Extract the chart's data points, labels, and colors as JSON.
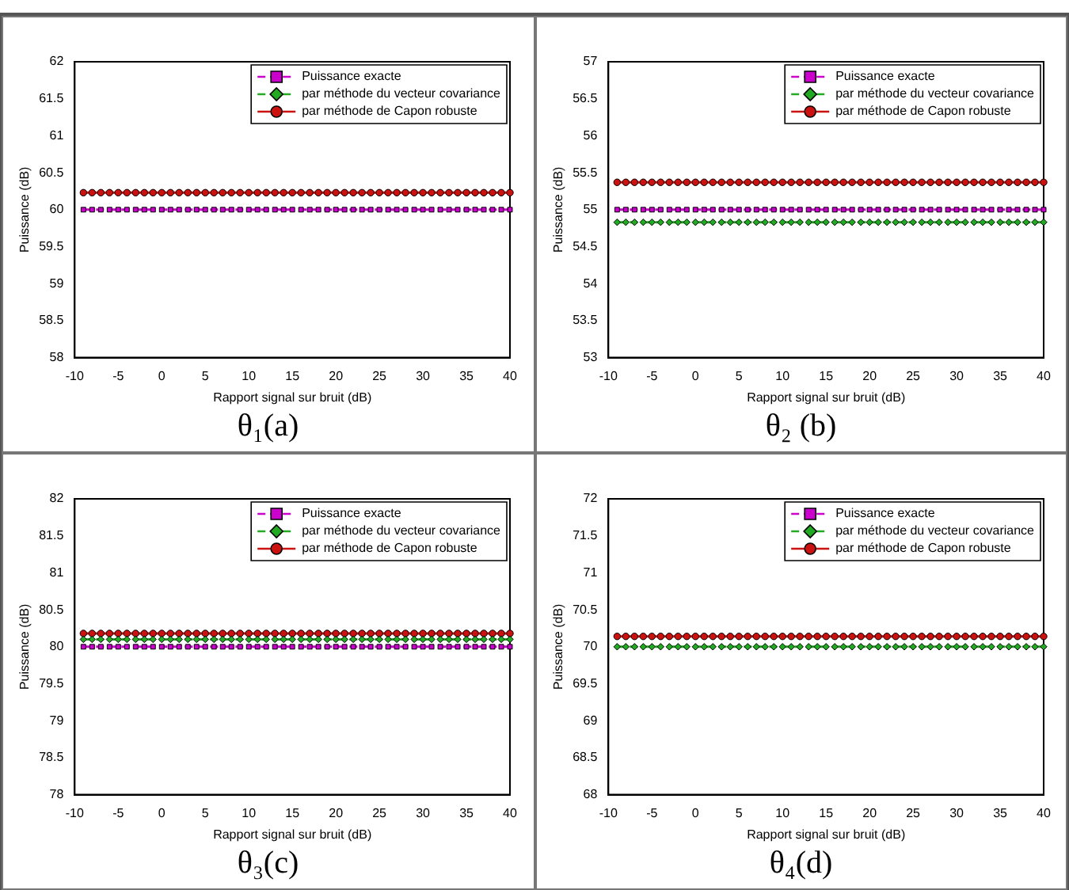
{
  "chart_data": [
    {
      "type": "line",
      "title": "θ₁(a)",
      "xlabel": "Rapport signal sur bruit (dB)",
      "ylabel": "Puissance (dB)",
      "x": [
        -9,
        -8,
        -7,
        -6,
        -5,
        -4,
        -3,
        -2,
        -1,
        0,
        1,
        2,
        3,
        4,
        5,
        6,
        7,
        8,
        9,
        10,
        11,
        12,
        13,
        14,
        15,
        16,
        17,
        18,
        19,
        20,
        21,
        22,
        23,
        24,
        25,
        26,
        27,
        28,
        29,
        30,
        31,
        32,
        33,
        34,
        35,
        36,
        37,
        38,
        39,
        40
      ],
      "xlim": [
        -10,
        40
      ],
      "xticks": [
        -10,
        -5,
        0,
        5,
        10,
        15,
        20,
        25,
        30,
        35,
        40
      ],
      "ylim": [
        58,
        62
      ],
      "yticks": [
        58,
        58.5,
        59,
        59.5,
        60,
        60.5,
        61,
        61.5,
        62
      ],
      "legend": "top right",
      "series": [
        {
          "name": "Puissance exacte",
          "color": "#cc00cc",
          "marker": "square",
          "line_style": "dashed",
          "values": [
            60,
            60,
            60,
            60,
            60,
            60,
            60,
            60,
            60,
            60,
            60,
            60,
            60,
            60,
            60,
            60,
            60,
            60,
            60,
            60,
            60,
            60,
            60,
            60,
            60,
            60,
            60,
            60,
            60,
            60,
            60,
            60,
            60,
            60,
            60,
            60,
            60,
            60,
            60,
            60,
            60,
            60,
            60,
            60,
            60,
            60,
            60,
            60,
            60,
            60
          ]
        },
        {
          "name": "par méthode du vecteur covariance",
          "color": "#22aa22",
          "marker": "diamond",
          "line_style": "dashed",
          "values": [
            null,
            null,
            null,
            null,
            null,
            null,
            null,
            null,
            null,
            null,
            null,
            null,
            null,
            null,
            null,
            null,
            null,
            null,
            null,
            null,
            null,
            null,
            null,
            null,
            null,
            null,
            null,
            null,
            null,
            null,
            null,
            null,
            null,
            null,
            null,
            null,
            null,
            null,
            null,
            null,
            null,
            null,
            null,
            null,
            null,
            null,
            null,
            null,
            null,
            null
          ]
        },
        {
          "name": "par méthode de Capon robuste",
          "color": "#cc1111",
          "marker": "circle",
          "line_style": "solid",
          "values": [
            60.23,
            60.23,
            60.23,
            60.23,
            60.23,
            60.23,
            60.23,
            60.23,
            60.23,
            60.23,
            60.23,
            60.23,
            60.23,
            60.23,
            60.23,
            60.23,
            60.23,
            60.23,
            60.23,
            60.23,
            60.23,
            60.23,
            60.23,
            60.23,
            60.23,
            60.23,
            60.23,
            60.23,
            60.23,
            60.23,
            60.23,
            60.23,
            60.23,
            60.23,
            60.23,
            60.23,
            60.23,
            60.23,
            60.23,
            60.23,
            60.23,
            60.23,
            60.23,
            60.23,
            60.23,
            60.23,
            60.23,
            60.23,
            60.23,
            60.23
          ]
        }
      ]
    },
    {
      "type": "line",
      "title": "θ₂ (b)",
      "xlabel": "Rapport signal sur bruit (dB)",
      "ylabel": "Puissance (dB)",
      "x": [
        -9,
        -8,
        -7,
        -6,
        -5,
        -4,
        -3,
        -2,
        -1,
        0,
        1,
        2,
        3,
        4,
        5,
        6,
        7,
        8,
        9,
        10,
        11,
        12,
        13,
        14,
        15,
        16,
        17,
        18,
        19,
        20,
        21,
        22,
        23,
        24,
        25,
        26,
        27,
        28,
        29,
        30,
        31,
        32,
        33,
        34,
        35,
        36,
        37,
        38,
        39,
        40
      ],
      "xlim": [
        -10,
        40
      ],
      "xticks": [
        -10,
        -5,
        0,
        5,
        10,
        15,
        20,
        25,
        30,
        35,
        40
      ],
      "ylim": [
        53,
        57
      ],
      "yticks": [
        53,
        53.5,
        54,
        54.5,
        55,
        55.5,
        56,
        56.5,
        57
      ],
      "legend": "top right",
      "series": [
        {
          "name": "Puissance exacte",
          "color": "#cc00cc",
          "marker": "square",
          "line_style": "dashed",
          "values": [
            55,
            55,
            55,
            55,
            55,
            55,
            55,
            55,
            55,
            55,
            55,
            55,
            55,
            55,
            55,
            55,
            55,
            55,
            55,
            55,
            55,
            55,
            55,
            55,
            55,
            55,
            55,
            55,
            55,
            55,
            55,
            55,
            55,
            55,
            55,
            55,
            55,
            55,
            55,
            55,
            55,
            55,
            55,
            55,
            55,
            55,
            55,
            55,
            55,
            55
          ]
        },
        {
          "name": "par méthode du vecteur covariance",
          "color": "#22aa22",
          "marker": "diamond",
          "line_style": "dashed",
          "values": [
            54.83,
            54.83,
            54.83,
            54.83,
            54.83,
            54.83,
            54.83,
            54.83,
            54.83,
            54.83,
            54.83,
            54.83,
            54.83,
            54.83,
            54.83,
            54.83,
            54.83,
            54.83,
            54.83,
            54.83,
            54.83,
            54.83,
            54.83,
            54.83,
            54.83,
            54.83,
            54.83,
            54.83,
            54.83,
            54.83,
            54.83,
            54.83,
            54.83,
            54.83,
            54.83,
            54.83,
            54.83,
            54.83,
            54.83,
            54.83,
            54.83,
            54.83,
            54.83,
            54.83,
            54.83,
            54.83,
            54.83,
            54.83,
            54.83,
            54.83
          ]
        },
        {
          "name": "par méthode de Capon robuste",
          "color": "#cc1111",
          "marker": "circle",
          "line_style": "solid",
          "values": [
            55.37,
            55.37,
            55.37,
            55.37,
            55.37,
            55.37,
            55.37,
            55.37,
            55.37,
            55.37,
            55.37,
            55.37,
            55.37,
            55.37,
            55.37,
            55.37,
            55.37,
            55.37,
            55.37,
            55.37,
            55.37,
            55.37,
            55.37,
            55.37,
            55.37,
            55.37,
            55.37,
            55.37,
            55.37,
            55.37,
            55.37,
            55.37,
            55.37,
            55.37,
            55.37,
            55.37,
            55.37,
            55.37,
            55.37,
            55.37,
            55.37,
            55.37,
            55.37,
            55.37,
            55.37,
            55.37,
            55.37,
            55.37,
            55.37,
            55.37
          ]
        }
      ]
    },
    {
      "type": "line",
      "title": "θ₃(c)",
      "xlabel": "Rapport signal sur bruit (dB)",
      "ylabel": "Puissance (dB)",
      "x": [
        -9,
        -8,
        -7,
        -6,
        -5,
        -4,
        -3,
        -2,
        -1,
        0,
        1,
        2,
        3,
        4,
        5,
        6,
        7,
        8,
        9,
        10,
        11,
        12,
        13,
        14,
        15,
        16,
        17,
        18,
        19,
        20,
        21,
        22,
        23,
        24,
        25,
        26,
        27,
        28,
        29,
        30,
        31,
        32,
        33,
        34,
        35,
        36,
        37,
        38,
        39,
        40
      ],
      "xlim": [
        -10,
        40
      ],
      "xticks": [
        -10,
        -5,
        0,
        5,
        10,
        15,
        20,
        25,
        30,
        35,
        40
      ],
      "ylim": [
        78,
        82
      ],
      "yticks": [
        78,
        78.5,
        79,
        79.5,
        80,
        80.5,
        81,
        81.5,
        82
      ],
      "legend": "top right",
      "series": [
        {
          "name": "Puissance exacte",
          "color": "#cc00cc",
          "marker": "square",
          "line_style": "dashed",
          "values": [
            80,
            80,
            80,
            80,
            80,
            80,
            80,
            80,
            80,
            80,
            80,
            80,
            80,
            80,
            80,
            80,
            80,
            80,
            80,
            80,
            80,
            80,
            80,
            80,
            80,
            80,
            80,
            80,
            80,
            80,
            80,
            80,
            80,
            80,
            80,
            80,
            80,
            80,
            80,
            80,
            80,
            80,
            80,
            80,
            80,
            80,
            80,
            80,
            80,
            80
          ]
        },
        {
          "name": "par méthode du vecteur covariance",
          "color": "#22aa22",
          "marker": "diamond",
          "line_style": "dashed",
          "values": [
            80.1,
            80.1,
            80.1,
            80.1,
            80.1,
            80.1,
            80.1,
            80.1,
            80.1,
            80.1,
            80.1,
            80.1,
            80.1,
            80.1,
            80.1,
            80.1,
            80.1,
            80.1,
            80.1,
            80.1,
            80.1,
            80.1,
            80.1,
            80.1,
            80.1,
            80.1,
            80.1,
            80.1,
            80.1,
            80.1,
            80.1,
            80.1,
            80.1,
            80.1,
            80.1,
            80.1,
            80.1,
            80.1,
            80.1,
            80.1,
            80.1,
            80.1,
            80.1,
            80.1,
            80.1,
            80.1,
            80.1,
            80.1,
            80.1,
            80.1
          ]
        },
        {
          "name": "par méthode de Capon robuste",
          "color": "#cc1111",
          "marker": "circle",
          "line_style": "solid",
          "values": [
            80.18,
            80.18,
            80.18,
            80.18,
            80.18,
            80.18,
            80.18,
            80.18,
            80.18,
            80.18,
            80.18,
            80.18,
            80.18,
            80.18,
            80.18,
            80.18,
            80.18,
            80.18,
            80.18,
            80.18,
            80.18,
            80.18,
            80.18,
            80.18,
            80.18,
            80.18,
            80.18,
            80.18,
            80.18,
            80.18,
            80.18,
            80.18,
            80.18,
            80.18,
            80.18,
            80.18,
            80.18,
            80.18,
            80.18,
            80.18,
            80.18,
            80.18,
            80.18,
            80.18,
            80.18,
            80.18,
            80.18,
            80.18,
            80.18,
            80.18
          ]
        }
      ]
    },
    {
      "type": "line",
      "title": "θ₄(d)",
      "xlabel": "Rapport signal sur bruit (dB)",
      "ylabel": "Puissance (dB)",
      "x": [
        -9,
        -8,
        -7,
        -6,
        -5,
        -4,
        -3,
        -2,
        -1,
        0,
        1,
        2,
        3,
        4,
        5,
        6,
        7,
        8,
        9,
        10,
        11,
        12,
        13,
        14,
        15,
        16,
        17,
        18,
        19,
        20,
        21,
        22,
        23,
        24,
        25,
        26,
        27,
        28,
        29,
        30,
        31,
        32,
        33,
        34,
        35,
        36,
        37,
        38,
        39,
        40
      ],
      "xlim": [
        -10,
        40
      ],
      "xticks": [
        -10,
        -5,
        0,
        5,
        10,
        15,
        20,
        25,
        30,
        35,
        40
      ],
      "ylim": [
        68,
        72
      ],
      "yticks": [
        68,
        68.5,
        69,
        69.5,
        70,
        70.5,
        71,
        71.5,
        72
      ],
      "legend": "top right",
      "series": [
        {
          "name": "Puissance exacte",
          "color": "#cc00cc",
          "marker": "square",
          "line_style": "dashed",
          "values": [
            null,
            null,
            null,
            null,
            null,
            null,
            null,
            null,
            null,
            null,
            null,
            null,
            null,
            null,
            null,
            null,
            null,
            null,
            null,
            null,
            null,
            null,
            null,
            null,
            null,
            null,
            null,
            null,
            null,
            null,
            null,
            null,
            null,
            null,
            null,
            null,
            null,
            null,
            null,
            null,
            null,
            null,
            null,
            null,
            null,
            null,
            null,
            null,
            null,
            null
          ]
        },
        {
          "name": "par méthode du vecteur covariance",
          "color": "#22aa22",
          "marker": "diamond",
          "line_style": "dashed",
          "values": [
            70,
            70,
            70,
            70,
            70,
            70,
            70,
            70,
            70,
            70,
            70,
            70,
            70,
            70,
            70,
            70,
            70,
            70,
            70,
            70,
            70,
            70,
            70,
            70,
            70,
            70,
            70,
            70,
            70,
            70,
            70,
            70,
            70,
            70,
            70,
            70,
            70,
            70,
            70,
            70,
            70,
            70,
            70,
            70,
            70,
            70,
            70,
            70,
            70,
            70
          ]
        },
        {
          "name": "par méthode de Capon robuste",
          "color": "#cc1111",
          "marker": "circle",
          "line_style": "solid",
          "values": [
            70.14,
            70.14,
            70.14,
            70.14,
            70.14,
            70.14,
            70.14,
            70.14,
            70.14,
            70.14,
            70.14,
            70.14,
            70.14,
            70.14,
            70.14,
            70.14,
            70.14,
            70.14,
            70.14,
            70.14,
            70.14,
            70.14,
            70.14,
            70.14,
            70.14,
            70.14,
            70.14,
            70.14,
            70.14,
            70.14,
            70.14,
            70.14,
            70.14,
            70.14,
            70.14,
            70.14,
            70.14,
            70.14,
            70.14,
            70.14,
            70.14,
            70.14,
            70.14,
            70.14,
            70.14,
            70.14,
            70.14,
            70.14,
            70.14,
            70.14
          ]
        }
      ]
    }
  ]
}
